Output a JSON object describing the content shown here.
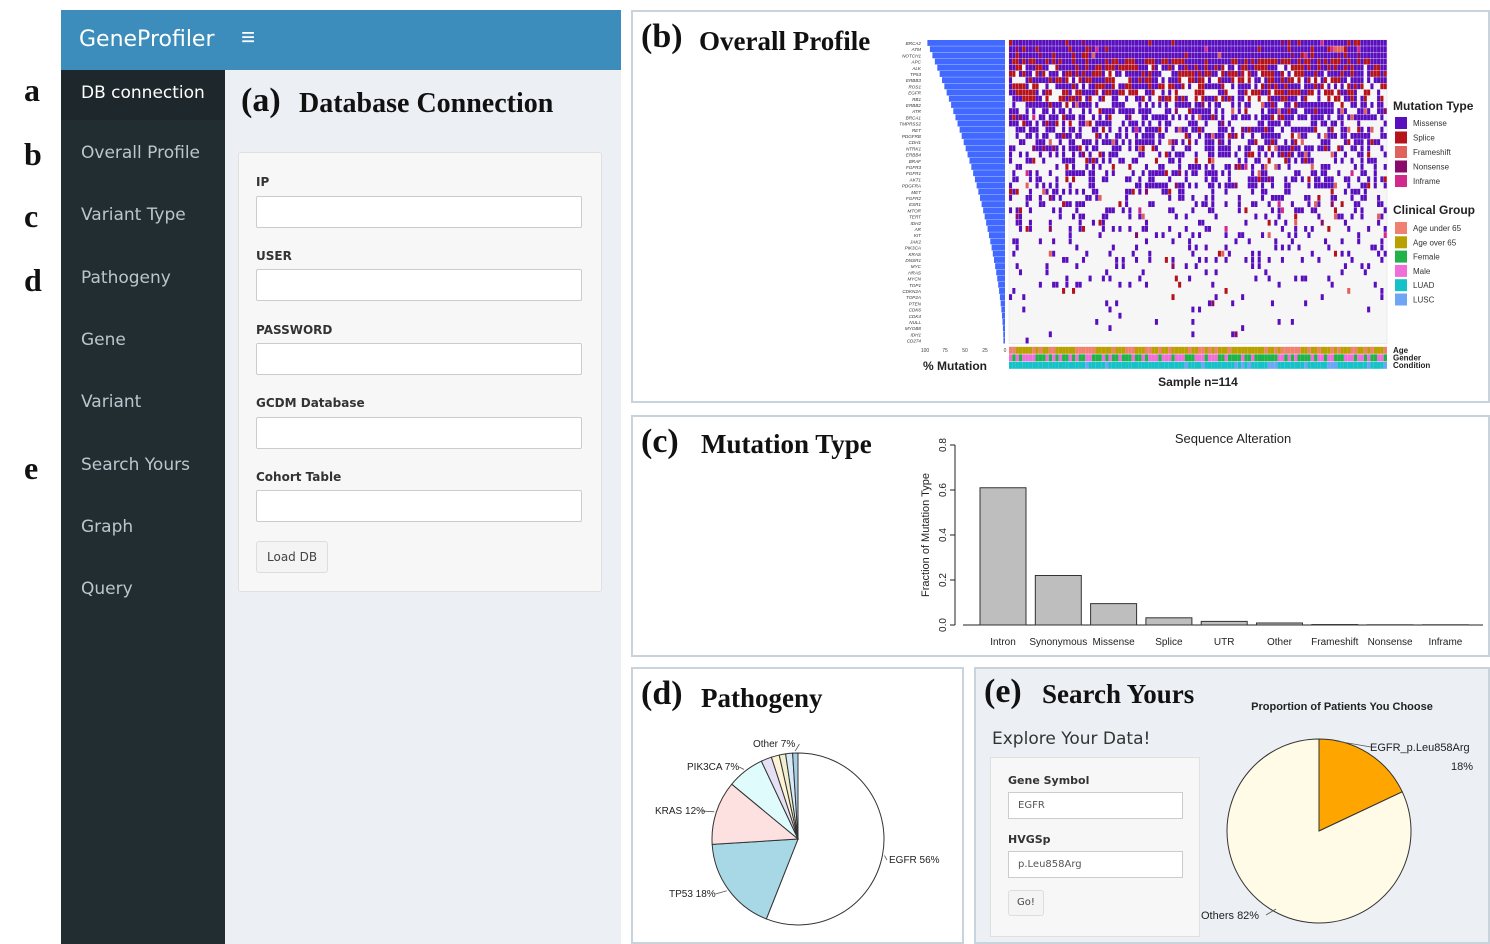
{
  "left_letters": [
    "a",
    "b",
    "c",
    "d",
    "e"
  ],
  "app": {
    "brand": "GeneProfiler",
    "menu_icon": "hamburger-icon",
    "sidebar": [
      {
        "label": "DB connection",
        "active": true
      },
      {
        "label": "Overall Profile"
      },
      {
        "label": "Variant Type"
      },
      {
        "label": "Pathogeny"
      },
      {
        "label": "Gene"
      },
      {
        "label": "Variant"
      },
      {
        "label": "Search Yours"
      },
      {
        "label": "Graph"
      },
      {
        "label": "Query"
      }
    ],
    "section_letter": "(a)",
    "section_title": "Database Connection",
    "form": {
      "fields": [
        {
          "label": "IP",
          "value": ""
        },
        {
          "label": "USER",
          "value": ""
        },
        {
          "label": "PASSWORD",
          "value": ""
        },
        {
          "label": "GCDM Database",
          "value": ""
        },
        {
          "label": "Cohort Table",
          "value": ""
        }
      ],
      "button": "Load DB"
    }
  },
  "panel_b": {
    "letter": "(b)",
    "title": "Overall Profile",
    "genes": [
      "BRCA2",
      "ATM",
      "NOTCH1",
      "APC",
      "ALK",
      "TP53",
      "ERBB3",
      "ROS1",
      "EGFR",
      "RB1",
      "ERBB2",
      "ATR",
      "BRCA1",
      "TMPRSS2",
      "RET",
      "PDGFRB",
      "CDH1",
      "NTRK1",
      "ERBB4",
      "BRAF",
      "FGFR3",
      "FGFR1",
      "AKT1",
      "PDGFRA",
      "MET",
      "FGFR2",
      "ESR1",
      "MTOR",
      "TERT",
      "IDH2",
      "AR",
      "KIT",
      "JAK2",
      "PIK3CA",
      "KRAS",
      "DNSR1",
      "MYC",
      "HRAS",
      "MYCN",
      "TOP1",
      "CDKN2A",
      "TOP2A",
      "PTEN",
      "CDK6",
      "CDK4",
      "NULL",
      "MYOB8",
      "IDH1",
      "CD274"
    ],
    "pct_ticks": [
      "100",
      "75",
      "50",
      "25",
      "0"
    ],
    "pct_label": "% Mutation",
    "sample_label": "Sample n=114",
    "track_labels": [
      "Age",
      "Gender",
      "Condition"
    ],
    "legend_mutation_title": "Mutation Type",
    "legend_mutation": [
      {
        "label": "Missense",
        "color": "#5a0fbf"
      },
      {
        "label": "Splice",
        "color": "#b5121b"
      },
      {
        "label": "Frameshift",
        "color": "#e0625e"
      },
      {
        "label": "Nonsense",
        "color": "#8b0b6b"
      },
      {
        "label": "Inframe",
        "color": "#d12a8c"
      }
    ],
    "legend_clinical_title": "Clinical Group",
    "legend_clinical": [
      {
        "label": "Age under 65",
        "color": "#f08070"
      },
      {
        "label": "Age over 65",
        "color": "#b8a000"
      },
      {
        "label": "Female",
        "color": "#21b34a"
      },
      {
        "label": "Male",
        "color": "#ef6fd8"
      },
      {
        "label": "LUAD",
        "color": "#16c1c8"
      },
      {
        "label": "LUSC",
        "color": "#6ea5f5"
      }
    ]
  },
  "panel_c": {
    "letter": "(c)",
    "title": "Mutation Type",
    "chart_data": {
      "type": "bar",
      "title": "Sequence Alteration",
      "ylabel": "Fraction of Mutation Type",
      "xlabel": "",
      "categories": [
        "Intron",
        "Synonymous",
        "Missense",
        "Splice",
        "UTR",
        "Other",
        "Frameshift",
        "Nonsense",
        "Inframe"
      ],
      "values": [
        0.61,
        0.22,
        0.095,
        0.032,
        0.016,
        0.009,
        0.002,
        0.001,
        0.001
      ],
      "ylim": [
        0,
        0.8
      ],
      "yticks": [
        "0.0",
        "0.2",
        "0.4",
        "0.6",
        "0.8"
      ],
      "bar_color": "#bebebe"
    }
  },
  "panel_d": {
    "letter": "(d)",
    "title": "Pathogeny",
    "chart_data": {
      "type": "pie",
      "slices": [
        {
          "label": "EGFR 56%",
          "value": 56,
          "color": "#ffffff"
        },
        {
          "label": "TP53 18%",
          "value": 18,
          "color": "#a8d8e6"
        },
        {
          "label": "KRAS 12%",
          "value": 12,
          "color": "#fde0e0"
        },
        {
          "label": "PIK3CA 7%",
          "value": 7,
          "color": "#e0fbfb"
        },
        {
          "label": "",
          "value": 2,
          "color": "#e6e0f5"
        },
        {
          "label": "",
          "value": 1.5,
          "color": "#fff3d6"
        },
        {
          "label": "",
          "value": 1.2,
          "color": "#f0f0d0"
        },
        {
          "label": "",
          "value": 1.3,
          "color": "#d8eaf8"
        },
        {
          "label": "Other 7%",
          "value": 1,
          "color": "#a8cfe6"
        }
      ]
    }
  },
  "panel_e": {
    "letter": "(e)",
    "title": "Search Yours",
    "explore": "Explore Your Data!",
    "gene_label": "Gene Symbol",
    "gene_value": "EGFR",
    "hvgs_label": "HVGSp",
    "hvgs_value": "p.Leu858Arg",
    "go": "Go!",
    "chart_data": {
      "type": "pie",
      "title": "Proportion of Patients You Choose",
      "slices": [
        {
          "label": "EGFR_p.Leu858Arg",
          "pct": "18%",
          "value": 18,
          "color": "#ffa500"
        },
        {
          "label": "Others 82%",
          "value": 82,
          "color": "#fffbe6"
        }
      ]
    }
  }
}
